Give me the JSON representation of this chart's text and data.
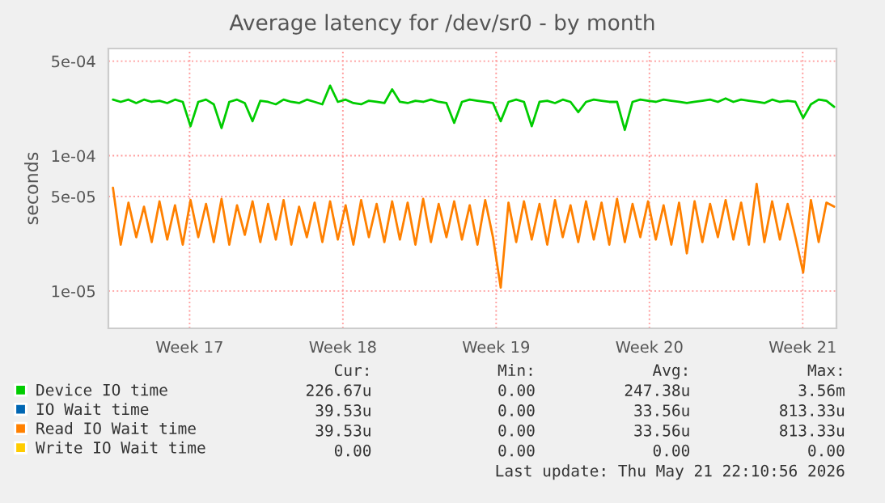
{
  "chart_data": {
    "type": "line",
    "title": "Average latency for /dev/sr0 - by month",
    "ylabel": "seconds",
    "log": "y",
    "grid": true,
    "legend": "bottom",
    "xlim": [
      "2026-04-19T19:00",
      "2026-05-23T01:00"
    ],
    "xticks": [
      {
        "value": "2026-04-23T12:00",
        "label": "Week 17"
      },
      {
        "value": "2026-04-30T12:00",
        "label": "Week 18"
      },
      {
        "value": "2026-05-07T12:00",
        "label": "Week 19"
      },
      {
        "value": "2026-05-14T12:00",
        "label": "Week 20"
      },
      {
        "value": "2026-05-21T12:00",
        "label": "Week 21"
      }
    ],
    "ylim": [
      5.3e-06,
      0.00062
    ],
    "yticks": [
      {
        "value": 1e-05,
        "label": "1e-05"
      },
      {
        "value": 5e-05,
        "label": "5e-05"
      },
      {
        "value": 0.0001,
        "label": "1e-04"
      },
      {
        "value": 0.0005,
        "label": "5e-04"
      }
    ],
    "x": [
      "2026-04-20T00:00",
      "2026-04-20T08:30",
      "2026-04-20T17:00",
      "2026-04-21T01:30",
      "2026-04-21T10:00",
      "2026-04-21T18:30",
      "2026-04-22T03:00",
      "2026-04-22T11:30",
      "2026-04-22T20:00",
      "2026-04-23T04:30",
      "2026-04-23T13:00",
      "2026-04-23T21:30",
      "2026-04-24T06:00",
      "2026-04-24T14:30",
      "2026-04-24T23:00",
      "2026-04-25T07:30",
      "2026-04-25T16:00",
      "2026-04-26T00:30",
      "2026-04-26T09:00",
      "2026-04-26T17:30",
      "2026-04-27T02:00",
      "2026-04-27T10:30",
      "2026-04-27T19:00",
      "2026-04-28T03:30",
      "2026-04-28T12:00",
      "2026-04-28T20:30",
      "2026-04-29T05:00",
      "2026-04-29T13:30",
      "2026-04-29T22:00",
      "2026-04-30T06:30",
      "2026-04-30T15:00",
      "2026-04-30T23:30",
      "2026-05-01T08:00",
      "2026-05-01T16:30",
      "2026-05-02T01:00",
      "2026-05-02T09:30",
      "2026-05-02T18:00",
      "2026-05-03T02:30",
      "2026-05-03T11:00",
      "2026-05-03T19:30",
      "2026-05-04T04:00",
      "2026-05-04T12:30",
      "2026-05-04T21:00",
      "2026-05-05T05:30",
      "2026-05-05T14:00",
      "2026-05-05T22:30",
      "2026-05-06T07:00",
      "2026-05-06T15:30",
      "2026-05-07T00:00",
      "2026-05-07T08:30",
      "2026-05-07T17:00",
      "2026-05-08T01:30",
      "2026-05-08T10:00",
      "2026-05-08T18:30",
      "2026-05-09T03:00",
      "2026-05-09T11:30",
      "2026-05-09T20:00",
      "2026-05-10T04:30",
      "2026-05-10T13:00",
      "2026-05-10T21:30",
      "2026-05-11T06:00",
      "2026-05-11T14:30",
      "2026-05-11T23:00",
      "2026-05-12T07:30",
      "2026-05-12T16:00",
      "2026-05-13T00:30",
      "2026-05-13T09:00",
      "2026-05-13T17:30",
      "2026-05-14T02:00",
      "2026-05-14T10:30",
      "2026-05-14T19:00",
      "2026-05-15T03:30",
      "2026-05-15T12:00",
      "2026-05-15T20:30",
      "2026-05-16T05:00",
      "2026-05-16T13:30",
      "2026-05-16T22:00",
      "2026-05-17T06:30",
      "2026-05-17T15:00",
      "2026-05-17T23:30",
      "2026-05-18T08:00",
      "2026-05-18T16:30",
      "2026-05-19T01:00",
      "2026-05-19T09:30",
      "2026-05-19T18:00",
      "2026-05-20T02:30",
      "2026-05-20T11:00",
      "2026-05-20T19:30",
      "2026-05-21T04:00",
      "2026-05-21T12:30",
      "2026-05-21T21:00",
      "2026-05-22T05:30",
      "2026-05-22T14:00",
      "2026-05-22T22:30"
    ],
    "series": [
      {
        "name": "Device IO time",
        "color": "#00cc00",
        "values": [
          0.00026,
          0.00025,
          0.00026,
          0.000245,
          0.00026,
          0.00025,
          0.000255,
          0.000245,
          0.00026,
          0.00025,
          0.000165,
          0.00025,
          0.00026,
          0.00024,
          0.00016,
          0.00025,
          0.00026,
          0.000245,
          0.00018,
          0.000255,
          0.00025,
          0.00024,
          0.00026,
          0.00025,
          0.000245,
          0.00026,
          0.00025,
          0.00024,
          0.00033,
          0.00025,
          0.00026,
          0.000245,
          0.00024,
          0.000255,
          0.00025,
          0.000245,
          0.00031,
          0.00025,
          0.000245,
          0.000255,
          0.00025,
          0.00026,
          0.00025,
          0.000245,
          0.000175,
          0.00025,
          0.00026,
          0.000255,
          0.00025,
          0.000245,
          0.00018,
          0.00025,
          0.00026,
          0.00025,
          0.000165,
          0.00025,
          0.000255,
          0.000245,
          0.00026,
          0.00025,
          0.00021,
          0.00025,
          0.00026,
          0.000255,
          0.00025,
          0.00025,
          0.000155,
          0.00025,
          0.00026,
          0.000255,
          0.00025,
          0.00026,
          0.000255,
          0.00025,
          0.000245,
          0.00025,
          0.000255,
          0.00026,
          0.00025,
          0.000265,
          0.00025,
          0.00026,
          0.000255,
          0.00025,
          0.000245,
          0.00026,
          0.00025,
          0.000255,
          0.00025,
          0.00019,
          0.00024,
          0.00026,
          0.000255,
          0.00023
        ]
      },
      {
        "name": "IO Wait time",
        "color": "#0066b3",
        "values": [
          null,
          null,
          null,
          null,
          null,
          null,
          null,
          null,
          null,
          null,
          null,
          null,
          null,
          null,
          null,
          null,
          null,
          null,
          null,
          null,
          null,
          null,
          null,
          null,
          null,
          null,
          null,
          null,
          null,
          null,
          null,
          null,
          null,
          null,
          null,
          null,
          null,
          null,
          null,
          null,
          null,
          null,
          null,
          null,
          null,
          null,
          null,
          null,
          null,
          null,
          null,
          null,
          null,
          null,
          null,
          null,
          null,
          null,
          null,
          null,
          null,
          null,
          null,
          null,
          null,
          null,
          null,
          null,
          null,
          null,
          null,
          null,
          null,
          null,
          null,
          null,
          null,
          null,
          null,
          null,
          null,
          null,
          null,
          null,
          null,
          null,
          null,
          null,
          null,
          null,
          null,
          null,
          null,
          null
        ]
      },
      {
        "name": "Read IO Wait time",
        "color": "#ff8000",
        "values": [
          5.8e-05,
          2.2e-05,
          4.5e-05,
          2.5e-05,
          4.2e-05,
          2.3e-05,
          4.6e-05,
          2.4e-05,
          4.3e-05,
          2.2e-05,
          4.7e-05,
          2.5e-05,
          4.4e-05,
          2.3e-05,
          4.8e-05,
          2.2e-05,
          4.3e-05,
          2.6e-05,
          4.6e-05,
          2.3e-05,
          4.4e-05,
          2.4e-05,
          4.7e-05,
          2.2e-05,
          4.2e-05,
          2.5e-05,
          4.5e-05,
          2.3e-05,
          4.6e-05,
          2.4e-05,
          4.3e-05,
          2.2e-05,
          4.7e-05,
          2.5e-05,
          4.4e-05,
          2.3e-05,
          4.6e-05,
          2.4e-05,
          4.5e-05,
          2.2e-05,
          4.8e-05,
          2.3e-05,
          4.4e-05,
          2.5e-05,
          4.6e-05,
          2.4e-05,
          4.3e-05,
          2.2e-05,
          4.7e-05,
          2.5e-05,
          1.06e-05,
          4.5e-05,
          2.3e-05,
          4.6e-05,
          2.4e-05,
          4.4e-05,
          2.2e-05,
          4.7e-05,
          2.5e-05,
          4.3e-05,
          2.3e-05,
          4.6e-05,
          2.4e-05,
          4.5e-05,
          2.2e-05,
          4.8e-05,
          2.3e-05,
          4.4e-05,
          2.5e-05,
          4.6e-05,
          2.4e-05,
          4.3e-05,
          2.2e-05,
          4.5e-05,
          1.9e-05,
          4.6e-05,
          2.3e-05,
          4.4e-05,
          2.5e-05,
          4.7e-05,
          2.4e-05,
          4.5e-05,
          2.2e-05,
          6.2e-05,
          2.3e-05,
          4.6e-05,
          2.4e-05,
          4.4e-05,
          2.5e-05,
          1.37e-05,
          4.7e-05,
          2.3e-05,
          4.5e-05,
          4.2e-05
        ]
      },
      {
        "name": "Write IO Wait time",
        "color": "#ffcc00",
        "values": [
          null,
          null,
          null,
          null,
          null,
          null,
          null,
          null,
          null,
          null,
          null,
          null,
          null,
          null,
          null,
          null,
          null,
          null,
          null,
          null,
          null,
          null,
          null,
          null,
          null,
          null,
          null,
          null,
          null,
          null,
          null,
          null,
          null,
          null,
          null,
          null,
          null,
          null,
          null,
          null,
          null,
          null,
          null,
          null,
          null,
          null,
          null,
          null,
          null,
          null,
          null,
          null,
          null,
          null,
          null,
          null,
          null,
          null,
          null,
          null,
          null,
          null,
          null,
          null,
          null,
          null,
          null,
          null,
          null,
          null,
          null,
          null,
          null,
          null,
          null,
          null,
          null,
          null,
          null,
          null,
          null,
          null,
          null,
          null,
          null,
          null,
          null,
          null,
          null,
          null,
          null,
          null,
          null,
          null
        ]
      }
    ],
    "annotations": [
      "Cur:",
      "Min:",
      "Avg:",
      "Max:",
      "226.67u",
      "0.00",
      "247.38u",
      "3.56m",
      "39.53u",
      "0.00",
      "33.56u",
      "813.33u",
      "39.53u",
      "0.00",
      "33.56u",
      "813.33u",
      "0.00",
      "0.00",
      "0.00",
      "0.00",
      "Last update: Thu May 21 22:10:56 2026"
    ]
  }
}
